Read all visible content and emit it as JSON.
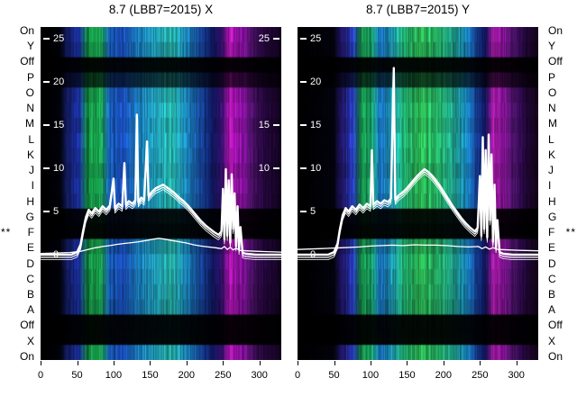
{
  "titles": {
    "left": "8.7 (LBB7=2015) X",
    "right": "8.7 (LBB7=2015) Y"
  },
  "side_labels": [
    "On",
    "Y",
    "Off",
    "P",
    "O",
    "N",
    "M",
    "L",
    "K",
    "J",
    "I",
    "H",
    "G",
    "F",
    "E",
    "D",
    "C",
    "B",
    "A",
    "Off",
    "X",
    "On"
  ],
  "star_row_index": 13,
  "star_text": "**",
  "colors": {
    "curve": "#ffffff",
    "tick_text": "#ffffff",
    "label_text": "#000000",
    "panel_background": "#000000",
    "page_background": "#ffffff"
  },
  "chart_data": [
    {
      "type": "heatmap",
      "title": "8.7 (LBB7=2015) X",
      "xlabel": "",
      "ylabel": "",
      "x_range": [
        0,
        330
      ],
      "value_range": [
        0,
        26
      ],
      "x_ticks": [
        0,
        50,
        100,
        150,
        200,
        250,
        300
      ],
      "y_left_ticks": [
        25,
        20,
        15,
        10,
        5,
        0
      ],
      "y_right_ticks": [
        25,
        15,
        10
      ],
      "rows": [
        "On",
        "Y",
        "Off",
        "P",
        "O",
        "N",
        "M",
        "L",
        "K",
        "J",
        "I",
        "H",
        "G",
        "F",
        "E",
        "D",
        "C",
        "B",
        "A",
        "Off",
        "X",
        "On"
      ],
      "row_gain": [
        0.95,
        0.85,
        0.05,
        0.3,
        0.9,
        1.0,
        0.92,
        1.0,
        0.95,
        0.88,
        0.96,
        0.9,
        0.08,
        0.05,
        0.8,
        0.95,
        0.9,
        0.85,
        0.8,
        0.05,
        0.05,
        0.9
      ],
      "column_stops": [
        [
          0.0,
          "#000000"
        ],
        [
          0.08,
          "#02030c"
        ],
        [
          0.11,
          "#16206e"
        ],
        [
          0.16,
          "#1d35b0"
        ],
        [
          0.195,
          "#17a44c"
        ],
        [
          0.25,
          "#1fc05e"
        ],
        [
          0.285,
          "#1a66c8"
        ],
        [
          0.34,
          "#1b4ec0"
        ],
        [
          0.41,
          "#1f92d8"
        ],
        [
          0.48,
          "#27bcd8"
        ],
        [
          0.545,
          "#2cc9bd"
        ],
        [
          0.61,
          "#1e93d2"
        ],
        [
          0.665,
          "#1b53b6"
        ],
        [
          0.715,
          "#131d74"
        ],
        [
          0.755,
          "#35106c"
        ],
        [
          0.785,
          "#c81ac8"
        ],
        [
          0.825,
          "#a312b8"
        ],
        [
          0.875,
          "#5a1478"
        ],
        [
          0.925,
          "#2c0948"
        ],
        [
          1.0,
          "#150423"
        ]
      ],
      "series": [
        {
          "name": "sum-profile",
          "points": [
            [
              0,
              0
            ],
            [
              42,
              0
            ],
            [
              50,
              0.3
            ],
            [
              55,
              1.2
            ],
            [
              58,
              2.6
            ],
            [
              62,
              4.3
            ],
            [
              66,
              5.2
            ],
            [
              70,
              4.8
            ],
            [
              75,
              5.4
            ],
            [
              80,
              5.0
            ],
            [
              85,
              5.6
            ],
            [
              90,
              5.2
            ],
            [
              95,
              5.7
            ],
            [
              100,
              8.8
            ],
            [
              102,
              5.4
            ],
            [
              107,
              5.9
            ],
            [
              112,
              5.6
            ],
            [
              115,
              10.6
            ],
            [
              117,
              5.8
            ],
            [
              121,
              6.2
            ],
            [
              126,
              5.9
            ],
            [
              130,
              6.3
            ],
            [
              132,
              16.2
            ],
            [
              134,
              6.1
            ],
            [
              138,
              6.6
            ],
            [
              142,
              6.3
            ],
            [
              146,
              13.1
            ],
            [
              148,
              6.8
            ],
            [
              153,
              7.3
            ],
            [
              158,
              7.7
            ],
            [
              163,
              7.9
            ],
            [
              168,
              8.1
            ],
            [
              173,
              7.8
            ],
            [
              178,
              7.5
            ],
            [
              184,
              7.1
            ],
            [
              190,
              6.6
            ],
            [
              196,
              6.2
            ],
            [
              202,
              5.7
            ],
            [
              208,
              5.1
            ],
            [
              214,
              4.5
            ],
            [
              220,
              3.9
            ],
            [
              226,
              3.4
            ],
            [
              232,
              3.0
            ],
            [
              238,
              2.6
            ],
            [
              244,
              2.3
            ],
            [
              248,
              2.7
            ],
            [
              250,
              7.6
            ],
            [
              252,
              1.8
            ],
            [
              254,
              9.9
            ],
            [
              256,
              2.2
            ],
            [
              258,
              8.6
            ],
            [
              260,
              1.4
            ],
            [
              262,
              9.3
            ],
            [
              264,
              3.0
            ],
            [
              266,
              7.1
            ],
            [
              268,
              1.0
            ],
            [
              270,
              5.6
            ],
            [
              272,
              0.6
            ],
            [
              274,
              3.2
            ],
            [
              277,
              0.2
            ],
            [
              282,
              0.1
            ],
            [
              295,
              0
            ],
            [
              330,
              0
            ]
          ]
        },
        {
          "name": "baseline-profile",
          "points": [
            [
              0,
              0.15
            ],
            [
              40,
              0.25
            ],
            [
              55,
              0.4
            ],
            [
              65,
              0.6
            ],
            [
              75,
              0.8
            ],
            [
              85,
              0.95
            ],
            [
              95,
              1.05
            ],
            [
              105,
              1.2
            ],
            [
              115,
              1.3
            ],
            [
              125,
              1.4
            ],
            [
              135,
              1.5
            ],
            [
              145,
              1.65
            ],
            [
              155,
              1.8
            ],
            [
              162,
              1.9
            ],
            [
              170,
              1.8
            ],
            [
              180,
              1.65
            ],
            [
              190,
              1.5
            ],
            [
              200,
              1.35
            ],
            [
              210,
              1.15
            ],
            [
              220,
              1.0
            ],
            [
              230,
              0.9
            ],
            [
              240,
              0.8
            ],
            [
              248,
              0.7
            ],
            [
              252,
              0.95
            ],
            [
              256,
              0.6
            ],
            [
              260,
              0.85
            ],
            [
              264,
              0.55
            ],
            [
              268,
              0.75
            ],
            [
              273,
              0.5
            ],
            [
              282,
              0.45
            ],
            [
              295,
              0.4
            ],
            [
              310,
              0.35
            ],
            [
              330,
              0.3
            ]
          ]
        }
      ]
    },
    {
      "type": "heatmap",
      "title": "8.7 (LBB7=2015) Y",
      "xlabel": "",
      "ylabel": "",
      "x_range": [
        0,
        330
      ],
      "value_range": [
        0,
        26
      ],
      "x_ticks": [
        0,
        50,
        100,
        150,
        200,
        250,
        300
      ],
      "y_left_ticks": [
        25,
        20,
        15,
        10,
        5,
        0
      ],
      "y_right_ticks": [],
      "rows": [
        "On",
        "Y",
        "Off",
        "P",
        "O",
        "N",
        "M",
        "L",
        "K",
        "J",
        "I",
        "H",
        "G",
        "F",
        "E",
        "D",
        "C",
        "B",
        "A",
        "Off",
        "X",
        "On"
      ],
      "row_gain": [
        0.95,
        0.85,
        0.05,
        0.3,
        0.9,
        1.0,
        0.92,
        1.0,
        0.95,
        0.88,
        0.96,
        0.9,
        0.08,
        0.05,
        0.8,
        0.95,
        0.9,
        0.85,
        0.8,
        0.05,
        0.05,
        0.9
      ],
      "column_stops": [
        [
          0.0,
          "#000000"
        ],
        [
          0.15,
          "#04040f"
        ],
        [
          0.185,
          "#271a7a"
        ],
        [
          0.23,
          "#2c42d2"
        ],
        [
          0.265,
          "#18a24e"
        ],
        [
          0.305,
          "#1db874"
        ],
        [
          0.345,
          "#1b7ad6"
        ],
        [
          0.395,
          "#23b2ca"
        ],
        [
          0.44,
          "#24c27e"
        ],
        [
          0.51,
          "#32d05e"
        ],
        [
          0.585,
          "#2aca76"
        ],
        [
          0.655,
          "#23b2a2"
        ],
        [
          0.705,
          "#1b92d2"
        ],
        [
          0.745,
          "#1b4ab2"
        ],
        [
          0.78,
          "#121a72"
        ],
        [
          0.815,
          "#c520c4"
        ],
        [
          0.855,
          "#a118b4"
        ],
        [
          0.895,
          "#5f1882"
        ],
        [
          0.935,
          "#2f0a50"
        ],
        [
          1.0,
          "#18051d"
        ]
      ],
      "series": [
        {
          "name": "sum-profile",
          "points": [
            [
              0,
              0
            ],
            [
              42,
              0
            ],
            [
              50,
              0.3
            ],
            [
              55,
              1.3
            ],
            [
              58,
              2.9
            ],
            [
              62,
              4.6
            ],
            [
              66,
              5.4
            ],
            [
              70,
              5.0
            ],
            [
              75,
              5.6
            ],
            [
              80,
              5.2
            ],
            [
              85,
              5.8
            ],
            [
              90,
              5.4
            ],
            [
              95,
              5.9
            ],
            [
              100,
              5.6
            ],
            [
              102,
              12.1
            ],
            [
              104,
              5.8
            ],
            [
              109,
              6.2
            ],
            [
              114,
              5.9
            ],
            [
              119,
              6.3
            ],
            [
              124,
              6.1
            ],
            [
              128,
              6.5
            ],
            [
              132,
              21.6
            ],
            [
              134,
              6.4
            ],
            [
              139,
              6.9
            ],
            [
              144,
              7.2
            ],
            [
              149,
              7.6
            ],
            [
              154,
              8.1
            ],
            [
              159,
              8.6
            ],
            [
              164,
              9.1
            ],
            [
              169,
              9.5
            ],
            [
              174,
              9.9
            ],
            [
              179,
              9.6
            ],
            [
              184,
              9.2
            ],
            [
              189,
              8.7
            ],
            [
              195,
              8.0
            ],
            [
              201,
              7.2
            ],
            [
              207,
              6.4
            ],
            [
              213,
              5.6
            ],
            [
              219,
              4.9
            ],
            [
              225,
              4.2
            ],
            [
              231,
              3.6
            ],
            [
              237,
              3.1
            ],
            [
              243,
              2.7
            ],
            [
              247,
              3.1
            ],
            [
              250,
              9.1
            ],
            [
              252,
              2.2
            ],
            [
              254,
              13.6
            ],
            [
              256,
              3.0
            ],
            [
              258,
              12.1
            ],
            [
              260,
              2.0
            ],
            [
              262,
              13.9
            ],
            [
              264,
              4.0
            ],
            [
              266,
              11.6
            ],
            [
              268,
              1.5
            ],
            [
              270,
              8.1
            ],
            [
              272,
              0.8
            ],
            [
              274,
              4.0
            ],
            [
              277,
              0.3
            ],
            [
              282,
              0.1
            ],
            [
              295,
              0
            ],
            [
              330,
              0
            ]
          ]
        },
        {
          "name": "baseline-profile",
          "points": [
            [
              0,
              0.6
            ],
            [
              30,
              0.7
            ],
            [
              60,
              0.8
            ],
            [
              85,
              0.9
            ],
            [
              100,
              1.0
            ],
            [
              115,
              1.05
            ],
            [
              130,
              1.1
            ],
            [
              145,
              1.05
            ],
            [
              160,
              1.15
            ],
            [
              175,
              1.1
            ],
            [
              190,
              1.1
            ],
            [
              205,
              1.05
            ],
            [
              220,
              0.95
            ],
            [
              235,
              0.9
            ],
            [
              248,
              0.95
            ],
            [
              253,
              0.7
            ],
            [
              258,
              0.9
            ],
            [
              263,
              0.65
            ],
            [
              268,
              0.8
            ],
            [
              275,
              0.6
            ],
            [
              290,
              0.55
            ],
            [
              305,
              0.5
            ],
            [
              330,
              0.45
            ]
          ]
        }
      ]
    }
  ]
}
